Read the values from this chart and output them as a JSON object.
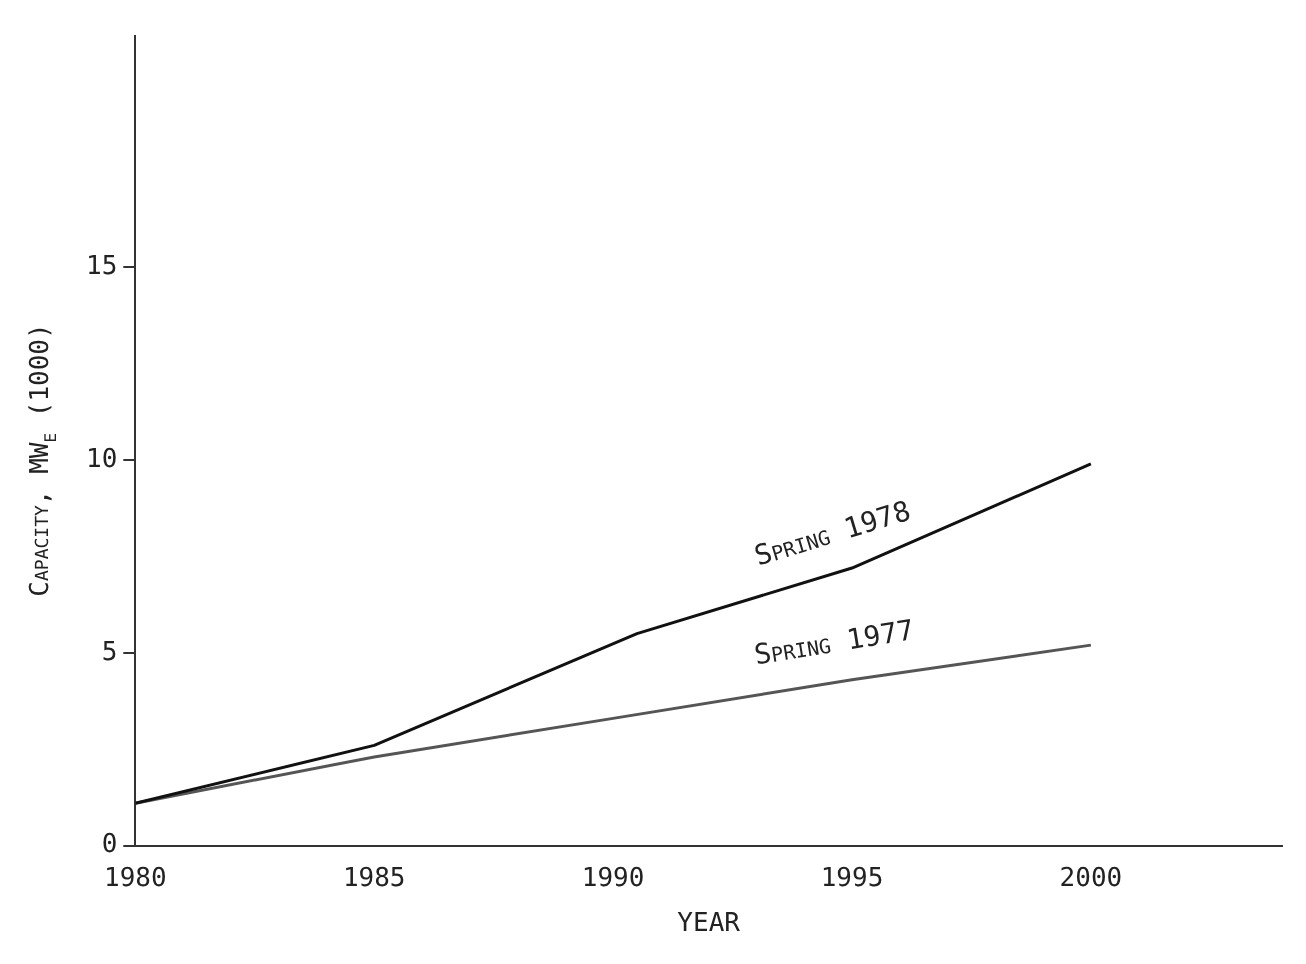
{
  "chart_data": {
    "type": "line",
    "xlabel": "YEAR",
    "ylabel": "Capacity, MW$_{e}$ (1000)",
    "series": [
      {
        "name": "Spring 1978",
        "color": "#111111",
        "x": [
          1980,
          1985,
          1990.5,
          1995,
          2000
        ],
        "values": [
          1.1,
          2.6,
          5.5,
          7.2,
          9.9
        ]
      },
      {
        "name": "Spring 1977",
        "color": "#555555",
        "x": [
          1980,
          1985,
          1990,
          1995,
          2000
        ],
        "values": [
          1.1,
          2.3,
          3.3,
          4.3,
          5.2
        ]
      }
    ],
    "xlim": [
      1980,
      2004
    ],
    "xticks": [
      1980,
      1985,
      1990,
      1995,
      2000
    ],
    "ylim": [
      0,
      21
    ],
    "yticks": [
      0,
      5,
      10,
      15
    ],
    "grid": false,
    "legend": false,
    "marker": "none",
    "line_style": "solid"
  }
}
